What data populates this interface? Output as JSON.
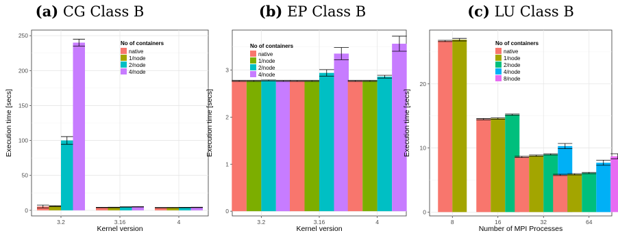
{
  "chart_data": [
    {
      "type": "bar",
      "label": "(a)",
      "title": "CG Class B",
      "xlabel": "Kernel version",
      "ylabel": "Execution time [secs]",
      "categories": [
        "3.2",
        "3.16",
        "4"
      ],
      "ylim": [
        -8,
        258
      ],
      "yticks": [
        0,
        50,
        100,
        150,
        200,
        250
      ],
      "legend_title": "No of containers",
      "legend_position": "top-right",
      "series": [
        {
          "name": "native",
          "color": "#F8766D",
          "values": [
            5.5,
            4.0,
            3.8
          ],
          "errors": [
            2.0,
            0.3,
            0.3
          ]
        },
        {
          "name": "1/node",
          "color": "#A3A500",
          "values": [
            6.0,
            4.1,
            3.9
          ],
          "errors": [
            0.5,
            0.3,
            0.3
          ]
        },
        {
          "name": "2/node",
          "color": "#00BFC4",
          "values": [
            100,
            4.8,
            4.0
          ],
          "errors": [
            5.5,
            0.3,
            0.3
          ]
        },
        {
          "name": "4/node",
          "color": "#C77CFF",
          "values": [
            240,
            5.0,
            4.2
          ],
          "errors": [
            5.0,
            0.3,
            0.3
          ]
        }
      ],
      "grid": true
    },
    {
      "type": "bar",
      "label": "(b)",
      "title": "EP Class B",
      "xlabel": "Kernel version",
      "ylabel": "Execution time [secs]",
      "categories": [
        "3.2",
        "3.16",
        "4"
      ],
      "ylim": [
        -0.1,
        3.85
      ],
      "yticks": [
        0,
        1,
        2,
        3
      ],
      "legend_title": "No of containers",
      "legend_position": "top-left",
      "series": [
        {
          "name": "native",
          "color": "#F8766D",
          "values": [
            2.77,
            2.77,
            2.77
          ],
          "errors": [
            0.01,
            0.01,
            0.01
          ]
        },
        {
          "name": "1/node",
          "color": "#7CAE00",
          "values": [
            2.77,
            2.77,
            2.77
          ],
          "errors": [
            0.01,
            0.01,
            0.01
          ]
        },
        {
          "name": "2/node",
          "color": "#00BFC4",
          "values": [
            2.78,
            2.94,
            2.86
          ],
          "errors": [
            0.01,
            0.07,
            0.03
          ]
        },
        {
          "name": "4/node",
          "color": "#C77CFF",
          "values": [
            2.77,
            3.35,
            3.56
          ],
          "errors": [
            0.01,
            0.13,
            0.16
          ]
        }
      ],
      "grid": true
    },
    {
      "type": "bar",
      "label": "(c)",
      "title": "LU Class B",
      "xlabel": "Number of MPI Processes",
      "ylabel": "Execution time [secs]",
      "categories": [
        "8",
        "16",
        "32",
        "64"
      ],
      "ylim": [
        -0.6,
        28.4
      ],
      "yticks": [
        0,
        10,
        20
      ],
      "legend_title": "No of containers",
      "legend_position": "top-left",
      "series": [
        {
          "name": "native",
          "color": "#F8766D",
          "values": [
            26.7,
            14.5,
            8.6,
            5.8
          ],
          "errors": [
            0.1,
            0.1,
            0.1,
            0.1
          ]
        },
        {
          "name": "1/node",
          "color": "#A3A500",
          "values": [
            26.9,
            14.6,
            8.8,
            5.9
          ],
          "errors": [
            0.2,
            0.1,
            0.1,
            0.1
          ]
        },
        {
          "name": "2/node",
          "color": "#00BF7D",
          "values": [
            null,
            15.2,
            9.0,
            6.1
          ],
          "errors": [
            0,
            0.1,
            0.1,
            0.1
          ]
        },
        {
          "name": "4/node",
          "color": "#00B0F6",
          "values": [
            null,
            null,
            10.3,
            7.7
          ],
          "errors": [
            0,
            0,
            0.4,
            0.4
          ]
        },
        {
          "name": "8/node",
          "color": "#E76BF3",
          "values": [
            null,
            null,
            null,
            8.7
          ],
          "errors": [
            0,
            0,
            0,
            0.4
          ]
        }
      ],
      "grid": true
    }
  ]
}
